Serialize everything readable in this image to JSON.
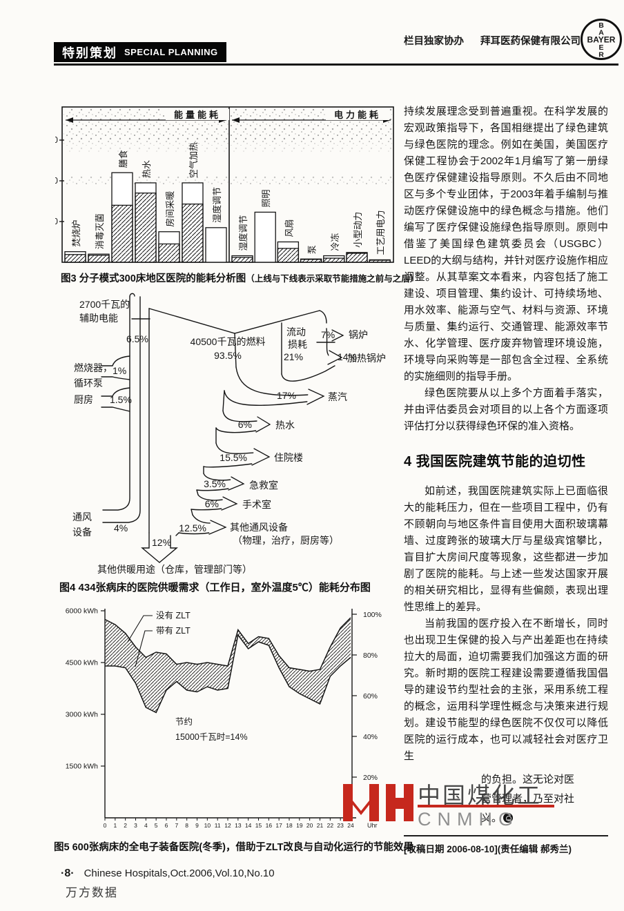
{
  "header": {
    "section_label_zh": "特别策划",
    "section_label_en": "SPECIAL PLANNING",
    "sponsor_prefix": "栏目独家协办",
    "sponsor_name": "拜耳医药保健有限公司",
    "logo_text": "BAYER"
  },
  "figures": {
    "fig3_caption": "图3 分子模式300床地区医院的能耗分析图",
    "fig3_note": "（上线与下线表示采取节能措施之前与之后）",
    "fig4_caption": "图4 434张病床的医院供暖需求（工作日，室外温度5℃）能耗分布图",
    "fig5_caption": "图5 600张病床的全电子装备医院(冬季)，借助于ZLT改良与自动化运行的节能效果"
  },
  "chart_data": [
    {
      "id": "fig3",
      "type": "bar",
      "title": "分子模式300床地区医院的能耗分析图",
      "note": "上线与下线表示采取节能措施之前与之后",
      "sections": [
        {
          "label": "能量能耗",
          "count": 7
        },
        {
          "label": "电力能耗",
          "count": 7
        }
      ],
      "categories": [
        "焚烧炉",
        "消毒灭菌",
        "膳食",
        "热水",
        "房间采暖",
        "空气加热",
        "湿度调节",
        "湿度调节",
        "照明",
        "风扇",
        "泵",
        "冷冻",
        "小型动力",
        "工艺用电力"
      ],
      "series": [
        {
          "name": "采取节能措施之前",
          "values": [
            2.6,
            2.0,
            22,
            19.5,
            7.5,
            19.5,
            8.5,
            1.6,
            12.3,
            5.0,
            0.8,
            1.6,
            2.4,
            0.6
          ]
        },
        {
          "name": "采取节能措施之后",
          "values": [
            1.9,
            1.7,
            14,
            17,
            4.5,
            14.3,
            0,
            1.2,
            0,
            3.4,
            0.7,
            1.0,
            2.2,
            0.5
          ]
        }
      ],
      "y_ticks": [
        10,
        20,
        30
      ],
      "ylim": [
        0,
        38
      ]
    },
    {
      "id": "fig4",
      "type": "diagram",
      "title": "434张病床的医院供暖需求（工作日，室外温度5℃）能耗分布图",
      "nodes": [
        {
          "label": "2700千瓦的辅助电能",
          "label_lines": [
            "2700千瓦的",
            "辅助电能"
          ],
          "value": "6.5%"
        },
        {
          "label": "燃烧器，循环泵",
          "label_lines": [
            "燃烧器，",
            "循环泵"
          ],
          "value": "1%"
        },
        {
          "label": "厨房",
          "value": "1.5%"
        },
        {
          "label": "40500千瓦的燃料",
          "value": "93.5%"
        },
        {
          "label": "流动损耗",
          "label_lines": [
            "流动",
            "损耗"
          ],
          "value": "21%"
        },
        {
          "label": "锅炉",
          "value": "7%"
        },
        {
          "label": "加热锅炉",
          "value": "14%"
        },
        {
          "label": "蒸汽",
          "value": "17%"
        },
        {
          "label": "热水",
          "value": "6%"
        },
        {
          "label": "住院楼",
          "value": "15.5%"
        },
        {
          "label": "急救室",
          "value": "3.5%"
        },
        {
          "label": "手术室",
          "value": "6%"
        },
        {
          "label": "其他通风设备",
          "sub": "（物理，治疗，厨房等）",
          "value": "12.5%"
        },
        {
          "label": "通风设备",
          "label_lines": [
            "通风",
            "设备"
          ],
          "value": "4%"
        },
        {
          "label": "其他供暖用途（仓库，管理部门等）",
          "value": "12%"
        }
      ]
    },
    {
      "id": "fig5",
      "type": "line",
      "title": "600张病床的全电子装备医院(冬季)，借助于ZLT改良与自动化运行的节能效果",
      "x": [
        0,
        1,
        2,
        3,
        4,
        5,
        6,
        7,
        8,
        9,
        10,
        11,
        12,
        13,
        14,
        15,
        16,
        17,
        18,
        19,
        20,
        21,
        22,
        23,
        24
      ],
      "x_unit": "Uhr",
      "series": [
        {
          "name": "没有 ZLT",
          "values": [
            5750,
            5600,
            5350,
            4950,
            4650,
            4800,
            4750,
            4450,
            4500,
            4450,
            4500,
            4450,
            4400,
            5450,
            5050,
            5250,
            5200,
            4700,
            4350,
            4300,
            4250,
            4300,
            4950,
            5500,
            5800
          ]
        },
        {
          "name": "带有 ZLT",
          "values": [
            4400,
            4400,
            4350,
            3900,
            3200,
            3050,
            3700,
            3950,
            3700,
            3650,
            3800,
            3700,
            3750,
            5300,
            4900,
            5100,
            5000,
            4350,
            3800,
            3600,
            3450,
            3300,
            4100,
            4400,
            4650
          ]
        }
      ],
      "y_left_values": [
        6000,
        4500,
        3000,
        1500
      ],
      "y_left_labels": [
        "6000 kWh",
        "4500 kWh",
        "3000 kWh",
        "1500 kWh"
      ],
      "y_right_labels": [
        "100%",
        "80%",
        "60%",
        "40%",
        "20%"
      ],
      "annotation": [
        "节约",
        "15000千瓦时=14%"
      ],
      "ylim": [
        0,
        6000
      ]
    }
  ],
  "article": {
    "p1": "持续发展理念受到普遍重视。在科学发展的宏观政策指导下，各国相继提出了绿色建筑与绿色医院的理念。例如在美国，美国医疗保健工程协会于2002年1月编写了第一册绿色医疗保健建设指导原则。不久后由不同地区与多个专业团体，于2003年着手编制与推动医疗保健设施中的绿色概念与措施。他们编写了医疗保健设施绿色指导原则。原则中借鉴了美国绿色建筑委员会（USGBC）LEED的大纲与结构，并针对医疗设施作相应调整。从其草案文本看来，内容包括了施工建设、项目管理、集约设计、可持续场地、用水效率、能源与空气、材料与资源、环境与质量、集约运行、交通管理、能源效率节水、化学管理、医疗废弃物管理环境设施，环境导向采购等是一部包含全过程、全系统的实施细则的指导手册。",
    "p2": "绿色医院要从以上多个方面着手落实，并由评估委员会对项目的以上各个方面逐项评估打分以获得绿色环保的准入资格。",
    "heading": "4 我国医院建筑节能的迫切性",
    "p3": "如前述，我国医院建筑实际上已面临很大的能耗压力，但在一些项目工程中，仍有不顾朝向与地区条件盲目使用大面积玻璃幕墙、过度跨张的玻璃大厅与星级宾馆攀比，盲目扩大房间尺度等现象，这些都进一步加剧了医院的能耗。与上述一些发达国家开展的相关研究相比，显得有些偏颇，表现出理性思维上的差异。",
    "p4": "当前我国的医疗投入在不断增长，同时也出现卫生保健的投入与产出差距也在持续拉大的局面，迫切需要我们加强这方面的研究。新时期的医院工程建设需要遵循我国倡导的建设节约型社会的主张，采用系统工程的概念，运用科学理性概念与决策来进行规划。建设节能型的绿色医院不仅仅可以降低医院的运行成本，也可以减轻社会对医疗卫生",
    "fragments": [
      "的负担。这无论对医",
      "营管理者，乃至对社",
      "义。"
    ],
    "received": "[收稿日期 2006-08-10](责任编辑 郝秀兰)"
  },
  "watermark": {
    "cn": "中国煤化工",
    "en": "CNMHG"
  },
  "footer": {
    "page_no": "·8·",
    "journal": "Chinese Hospitals,Oct.2006,Vol.10,No.10",
    "db_mark": "万方数据"
  },
  "colors": {
    "accent_red": "#c6281d",
    "watermark_gray": "#8f8f8f"
  }
}
